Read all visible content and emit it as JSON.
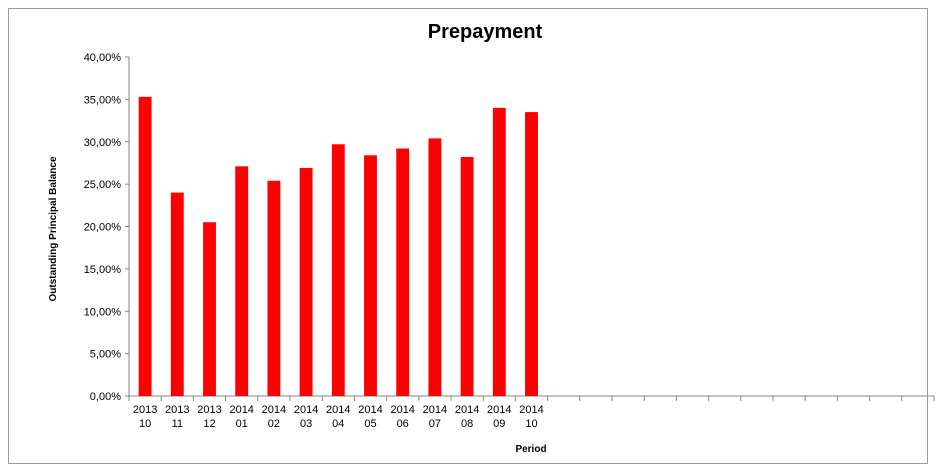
{
  "chart_data": {
    "type": "bar",
    "title": "Prepayment",
    "xlabel": "Period",
    "ylabel": "Outstanding Principal Balance",
    "categories": [
      [
        "2013",
        "10"
      ],
      [
        "2013",
        "11"
      ],
      [
        "2013",
        "12"
      ],
      [
        "2014",
        "01"
      ],
      [
        "2014",
        "02"
      ],
      [
        "2014",
        "03"
      ],
      [
        "2014",
        "04"
      ],
      [
        "2014",
        "05"
      ],
      [
        "2014",
        "06"
      ],
      [
        "2014",
        "07"
      ],
      [
        "2014",
        "08"
      ],
      [
        "2014",
        "09"
      ],
      [
        "2014",
        "10"
      ],
      [
        "",
        ""
      ],
      [
        "",
        ""
      ],
      [
        "",
        ""
      ],
      [
        "",
        ""
      ],
      [
        "",
        ""
      ],
      [
        "",
        ""
      ],
      [
        "",
        ""
      ],
      [
        "",
        ""
      ],
      [
        "",
        ""
      ],
      [
        "",
        ""
      ],
      [
        "",
        ""
      ],
      [
        "",
        ""
      ]
    ],
    "values": [
      35.3,
      24.0,
      20.5,
      27.1,
      25.4,
      26.9,
      29.7,
      28.4,
      29.2,
      30.4,
      28.2,
      34.0,
      33.5,
      null,
      null,
      null,
      null,
      null,
      null,
      null,
      null,
      null,
      null,
      null,
      null
    ],
    "ylim": [
      0,
      40
    ],
    "yticks": [
      "0,00%",
      "5,00%",
      "10,00%",
      "15,00%",
      "20,00%",
      "25,00%",
      "30,00%",
      "35,00%",
      "40,00%"
    ],
    "colors": {
      "bar": "#ff0000",
      "axis": "#868686"
    },
    "grid": false,
    "legend": "none"
  }
}
